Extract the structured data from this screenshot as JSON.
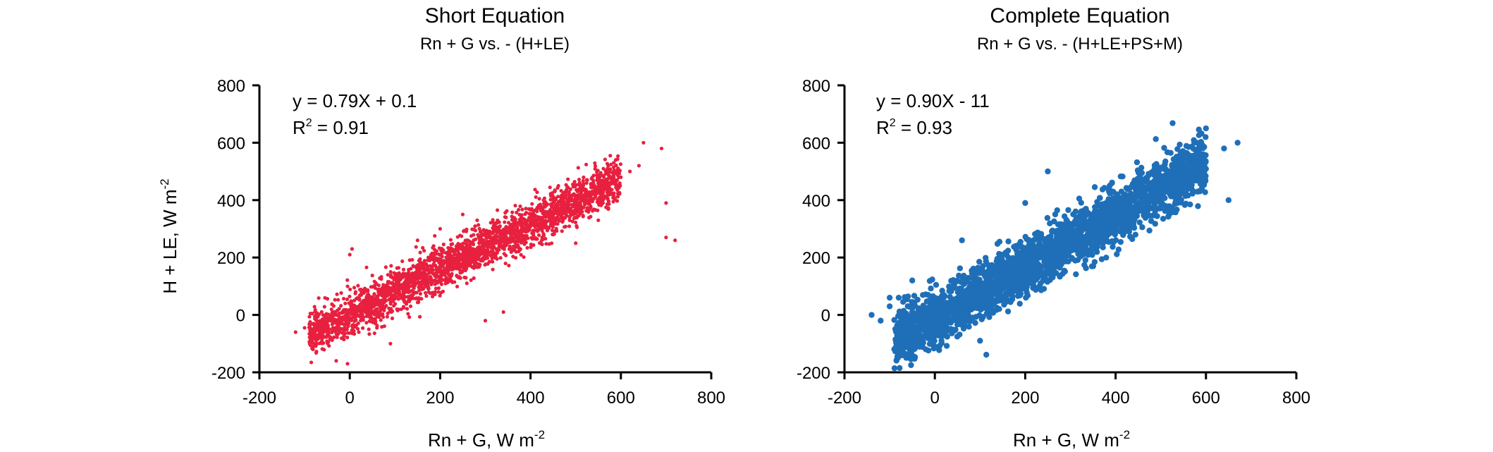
{
  "chart_data": [
    {
      "type": "scatter",
      "title": "Short Equation",
      "subtitle": "Rn + G vs. - (H+LE)",
      "xlabel": "Rn + G, W m",
      "xlabel_sup": "-2",
      "ylabel": "H + LE, W m",
      "ylabel_sup": "-2",
      "xlim": [
        -200,
        800
      ],
      "ylim": [
        -200,
        800
      ],
      "x_ticks": [
        "-200",
        "0",
        "200",
        "400",
        "600",
        "800"
      ],
      "y_ticks": [
        "-200",
        "0",
        "200",
        "400",
        "600",
        "800"
      ],
      "equation": "y = 0.79X + 0.1",
      "r2_label": "R",
      "r2_sup": "2",
      "r2_value": " = 0.91",
      "color": "#E8203F",
      "series": [
        {
          "points": [
            [
              -120,
              -60
            ],
            [
              -100,
              -45
            ],
            [
              -80,
              -30
            ],
            [
              -60,
              -20
            ],
            [
              -50,
              -70
            ],
            [
              -40,
              -10
            ],
            [
              -30,
              0
            ],
            [
              -20,
              -30
            ],
            [
              -10,
              40
            ],
            [
              0,
              210
            ],
            [
              5,
              230
            ],
            [
              10,
              20
            ],
            [
              20,
              30
            ],
            [
              40,
              40
            ],
            [
              60,
              60
            ],
            [
              80,
              70
            ],
            [
              100,
              80
            ],
            [
              120,
              100
            ],
            [
              140,
              110
            ],
            [
              160,
              130
            ],
            [
              180,
              150
            ],
            [
              200,
              160
            ],
            [
              220,
              180
            ],
            [
              240,
              190
            ],
            [
              260,
              210
            ],
            [
              280,
              220
            ],
            [
              300,
              240
            ],
            [
              320,
              260
            ],
            [
              340,
              270
            ],
            [
              360,
              290
            ],
            [
              380,
              300
            ],
            [
              400,
              320
            ],
            [
              420,
              330
            ],
            [
              440,
              350
            ],
            [
              460,
              370
            ],
            [
              480,
              380
            ],
            [
              500,
              400
            ],
            [
              520,
              420
            ],
            [
              540,
              430
            ],
            [
              560,
              450
            ],
            [
              580,
              470
            ],
            [
              600,
              480
            ],
            [
              620,
              500
            ],
            [
              640,
              520
            ],
            [
              650,
              600
            ],
            [
              690,
              580
            ],
            [
              700,
              270
            ],
            [
              720,
              260
            ],
            [
              700,
              390
            ],
            [
              20,
              -60
            ],
            [
              90,
              -100
            ],
            [
              -30,
              -160
            ],
            [
              -5,
              -170
            ],
            [
              300,
              -20
            ],
            [
              340,
              10
            ],
            [
              200,
              300
            ],
            [
              150,
              260
            ],
            [
              250,
              350
            ],
            [
              500,
              250
            ],
            [
              550,
              330
            ]
          ]
        }
      ]
    },
    {
      "type": "scatter",
      "title": "Complete Equation",
      "subtitle": "Rn + G vs. - (H+LE+PS+M)",
      "xlabel": "Rn + G, W m",
      "xlabel_sup": "-2",
      "xlim": [
        -200,
        800
      ],
      "ylim": [
        -200,
        800
      ],
      "x_ticks": [
        "-200",
        "0",
        "200",
        "400",
        "600",
        "800"
      ],
      "y_ticks": [
        "-200",
        "0",
        "200",
        "400",
        "600",
        "800"
      ],
      "equation": "y = 0.90X - 11",
      "r2_label": "R",
      "r2_sup": "2",
      "r2_value": " = 0.93",
      "color": "#1F6FB8",
      "series": [
        {
          "points": [
            [
              -140,
              0
            ],
            [
              -120,
              -20
            ],
            [
              -100,
              30
            ],
            [
              -80,
              60
            ],
            [
              -60,
              -10
            ],
            [
              -40,
              -60
            ],
            [
              -20,
              -120
            ],
            [
              0,
              -110
            ],
            [
              20,
              -40
            ],
            [
              40,
              20
            ],
            [
              60,
              40
            ],
            [
              80,
              60
            ],
            [
              100,
              80
            ],
            [
              120,
              100
            ],
            [
              140,
              120
            ],
            [
              160,
              140
            ],
            [
              180,
              160
            ],
            [
              200,
              180
            ],
            [
              220,
              200
            ],
            [
              240,
              220
            ],
            [
              260,
              240
            ],
            [
              280,
              260
            ],
            [
              300,
              280
            ],
            [
              320,
              300
            ],
            [
              340,
              320
            ],
            [
              360,
              340
            ],
            [
              380,
              360
            ],
            [
              400,
              380
            ],
            [
              420,
              400
            ],
            [
              440,
              420
            ],
            [
              460,
              440
            ],
            [
              480,
              460
            ],
            [
              500,
              480
            ],
            [
              520,
              500
            ],
            [
              540,
              520
            ],
            [
              560,
              560
            ],
            [
              580,
              600
            ],
            [
              600,
              650
            ],
            [
              640,
              580
            ],
            [
              650,
              400
            ],
            [
              670,
              600
            ],
            [
              250,
              500
            ],
            [
              200,
              390
            ],
            [
              100,
              -90
            ],
            [
              -100,
              60
            ],
            [
              430,
              290
            ],
            [
              -50,
              120
            ],
            [
              60,
              260
            ]
          ]
        }
      ]
    }
  ]
}
